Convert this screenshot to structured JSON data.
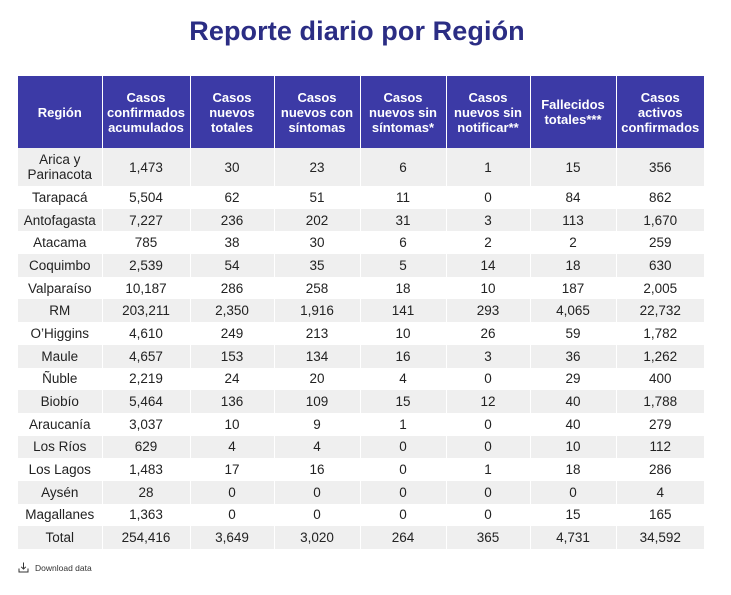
{
  "title": "Reporte diario por Región",
  "download_label": "Download data",
  "colors": {
    "title": "#2b2d84",
    "header_bg": "#3c3aa6",
    "row_alt_bg": "#efefef"
  },
  "chart_data": {
    "type": "table",
    "title": "Reporte diario por Región",
    "columns": [
      "Región",
      "Casos confirmados acumulados",
      "Casos nuevos totales",
      "Casos nuevos con síntomas",
      "Casos nuevos sin síntomas*",
      "Casos nuevos sin notificar**",
      "Fallecidos totales***",
      "Casos activos confirmados"
    ],
    "rows": [
      [
        "Arica y Parinacota",
        "1,473",
        "30",
        "23",
        "6",
        "1",
        "15",
        "356"
      ],
      [
        "Tarapacá",
        "5,504",
        "62",
        "51",
        "11",
        "0",
        "84",
        "862"
      ],
      [
        "Antofagasta",
        "7,227",
        "236",
        "202",
        "31",
        "3",
        "113",
        "1,670"
      ],
      [
        "Atacama",
        "785",
        "38",
        "30",
        "6",
        "2",
        "2",
        "259"
      ],
      [
        "Coquimbo",
        "2,539",
        "54",
        "35",
        "5",
        "14",
        "18",
        "630"
      ],
      [
        "Valparaíso",
        "10,187",
        "286",
        "258",
        "18",
        "10",
        "187",
        "2,005"
      ],
      [
        "RM",
        "203,211",
        "2,350",
        "1,916",
        "141",
        "293",
        "4,065",
        "22,732"
      ],
      [
        "O’Higgins",
        "4,610",
        "249",
        "213",
        "10",
        "26",
        "59",
        "1,782"
      ],
      [
        "Maule",
        "4,657",
        "153",
        "134",
        "16",
        "3",
        "36",
        "1,262"
      ],
      [
        "Ñuble",
        "2,219",
        "24",
        "20",
        "4",
        "0",
        "29",
        "400"
      ],
      [
        "Biobío",
        "5,464",
        "136",
        "109",
        "15",
        "12",
        "40",
        "1,788"
      ],
      [
        "Araucanía",
        "3,037",
        "10",
        "9",
        "1",
        "0",
        "40",
        "279"
      ],
      [
        "Los Ríos",
        "629",
        "4",
        "4",
        "0",
        "0",
        "10",
        "112"
      ],
      [
        "Los Lagos",
        "1,483",
        "17",
        "16",
        "0",
        "1",
        "18",
        "286"
      ],
      [
        "Aysén",
        "28",
        "0",
        "0",
        "0",
        "0",
        "0",
        "4"
      ],
      [
        "Magallanes",
        "1,363",
        "0",
        "0",
        "0",
        "0",
        "15",
        "165"
      ],
      [
        "Total",
        "254,416",
        "3,649",
        "3,020",
        "264",
        "365",
        "4,731",
        "34,592"
      ]
    ]
  }
}
